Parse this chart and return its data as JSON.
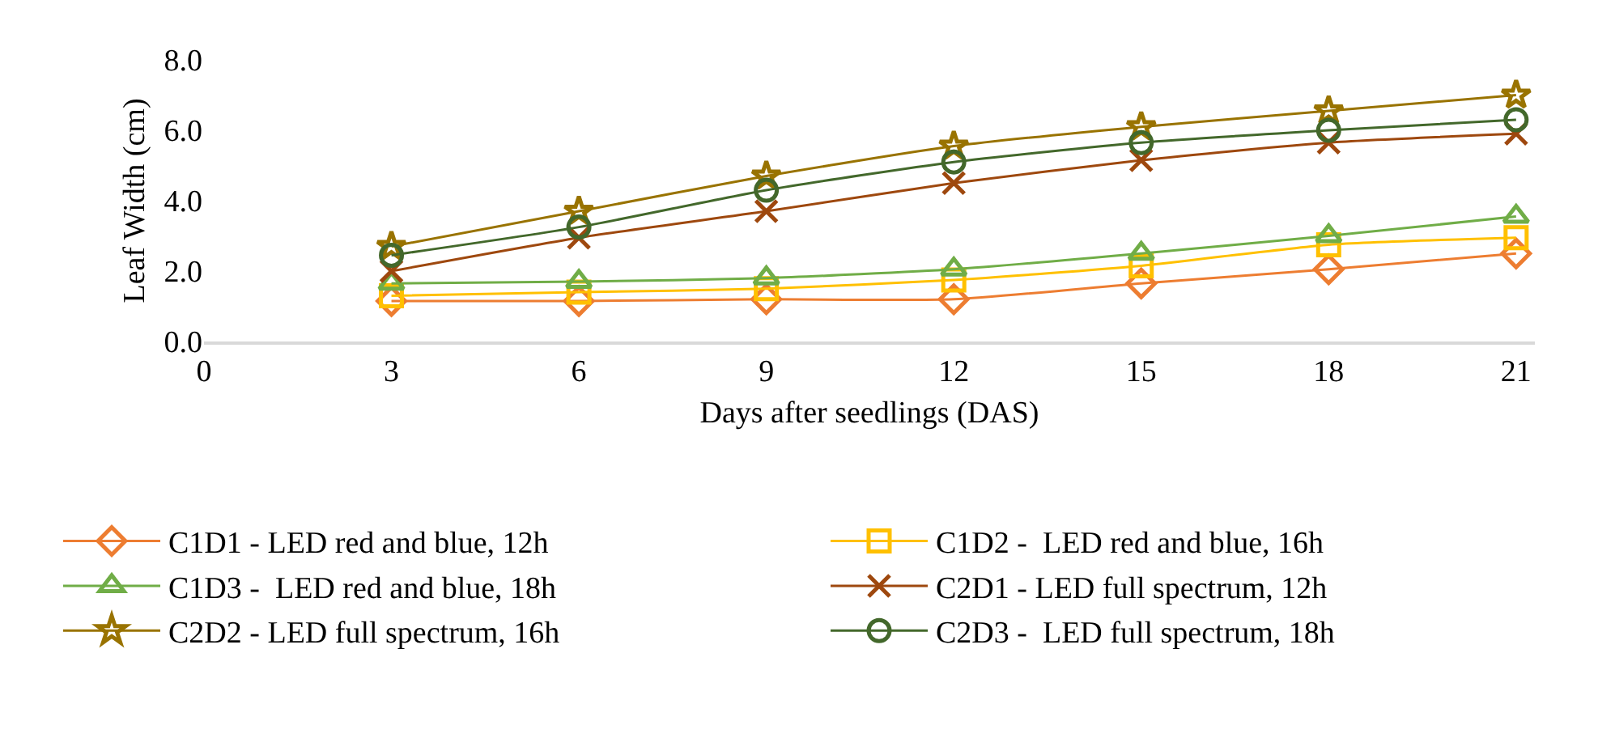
{
  "chart_data": {
    "type": "line",
    "xlabel": "Days after seedlings (DAS)",
    "ylabel": "Leaf Width (cm)",
    "x": [
      3,
      6,
      9,
      12,
      15,
      18,
      21
    ],
    "xlim": [
      0,
      21.3
    ],
    "xticks": [
      0,
      3,
      6,
      9,
      12,
      15,
      18,
      21
    ],
    "ylim": [
      0,
      8
    ],
    "yticks": [
      {
        "value": 0,
        "label": "0.0"
      },
      {
        "value": 2,
        "label": "2.0"
      },
      {
        "value": 4,
        "label": "4.0"
      },
      {
        "value": 6,
        "label": "6.0"
      },
      {
        "value": 8,
        "label": "8.0"
      }
    ],
    "grid": false,
    "legend": "bottom",
    "series": [
      {
        "name": "C1D1 - LED red and blue, 12h",
        "color": "#ed7d31",
        "marker": "diamond",
        "values": [
          1.15,
          1.15,
          1.2,
          1.2,
          1.65,
          2.05,
          2.5
        ]
      },
      {
        "name": "C1D2 -  LED red and blue, 16h",
        "color": "#ffc000",
        "marker": "square",
        "values": [
          1.3,
          1.4,
          1.5,
          1.75,
          2.15,
          2.75,
          2.95
        ]
      },
      {
        "name": "C1D3 -  LED red and blue, 18h",
        "color": "#70ad47",
        "marker": "triangle",
        "values": [
          1.65,
          1.7,
          1.8,
          2.05,
          2.5,
          3.0,
          3.55
        ]
      },
      {
        "name": "C2D1 - LED full spectrum, 12h",
        "color": "#9e480e",
        "marker": "cross",
        "values": [
          2.0,
          2.95,
          3.7,
          4.5,
          5.15,
          5.65,
          5.9
        ]
      },
      {
        "name": "C2D2 - LED full spectrum, 16h",
        "color": "#997300",
        "marker": "star",
        "values": [
          2.7,
          3.7,
          4.7,
          5.55,
          6.1,
          6.55,
          7.0
        ]
      },
      {
        "name": "C2D3 -  LED full spectrum, 18h",
        "color": "#43682b",
        "marker": "circle",
        "values": [
          2.45,
          3.25,
          4.3,
          5.1,
          5.65,
          6.0,
          6.3
        ]
      }
    ]
  }
}
